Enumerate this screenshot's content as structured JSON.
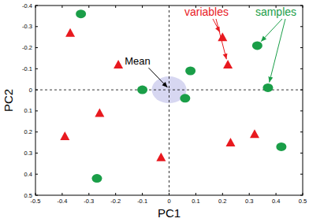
{
  "chart_data": {
    "type": "scatter",
    "x_label": "PC1",
    "y_label": "PC2",
    "xlim": [
      -0.5,
      0.5
    ],
    "xticks": [
      -0.5,
      -0.4,
      -0.3,
      -0.2,
      -0.1,
      0,
      0.1,
      0.2,
      0.3,
      0.4,
      0.5
    ],
    "ylim": [
      0.5,
      -0.4
    ],
    "yticks": [
      -0.4,
      -0.3,
      -0.2,
      -0.1,
      0,
      0.1,
      0.2,
      0.3,
      0.4,
      0.5
    ],
    "grid": false,
    "series": [
      {
        "name": "variables",
        "color": "#e8191f",
        "marker": "triangle",
        "x": [
          -0.37,
          -0.19,
          0.2,
          0.22,
          -0.26,
          -0.39,
          -0.03,
          0.23,
          0.32
        ],
        "values": [
          -0.27,
          -0.12,
          -0.25,
          -0.12,
          0.11,
          0.22,
          0.32,
          0.25,
          0.21
        ]
      },
      {
        "name": "samples",
        "color": "#1a9e48",
        "marker": "circle",
        "x": [
          -0.33,
          -0.1,
          0.08,
          0.06,
          0.33,
          0.37,
          0.42,
          -0.27
        ],
        "values": [
          -0.36,
          0.0,
          -0.09,
          0.04,
          -0.21,
          -0.01,
          0.27,
          0.42
        ]
      }
    ],
    "mean": {
      "label": "Mean",
      "x": 0,
      "y": 0
    }
  }
}
